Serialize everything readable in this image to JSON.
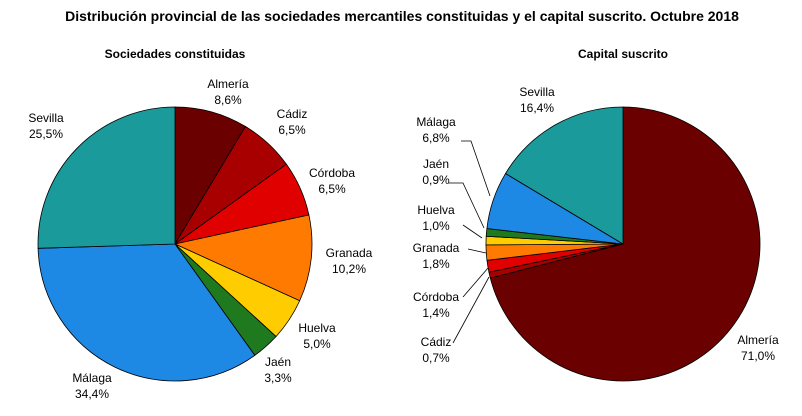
{
  "title": "Distribución provincial de las sociedades mercantiles constituidas y el capital suscrito. Octubre 2018",
  "chart_data": [
    {
      "type": "pie",
      "title": "Sociedades constituidas",
      "start_angle_deg": 0,
      "direction": "clockwise",
      "slices": [
        {
          "label": "Almería",
          "value": 8.6,
          "value_text": "8,6%",
          "color": "#6b0000"
        },
        {
          "label": "Cádiz",
          "value": 6.5,
          "value_text": "6,5%",
          "color": "#a80000"
        },
        {
          "label": "Córdoba",
          "value": 6.5,
          "value_text": "6,5%",
          "color": "#e00000"
        },
        {
          "label": "Granada",
          "value": 10.2,
          "value_text": "10,2%",
          "color": "#ff7a00"
        },
        {
          "label": "Huelva",
          "value": 5.0,
          "value_text": "5,0%",
          "color": "#ffcc00"
        },
        {
          "label": "Jaén",
          "value": 3.3,
          "value_text": "3,3%",
          "color": "#1f7a1f"
        },
        {
          "label": "Málaga",
          "value": 34.4,
          "value_text": "34,4%",
          "color": "#1e88e5"
        },
        {
          "label": "Sevilla",
          "value": 25.5,
          "value_text": "25,5%",
          "color": "#1a9a9a"
        }
      ]
    },
    {
      "type": "pie",
      "title": "Capital suscrito",
      "start_angle_deg": 0,
      "direction": "clockwise",
      "slices": [
        {
          "label": "Almería",
          "value": 71.0,
          "value_text": "71,0%",
          "color": "#6b0000"
        },
        {
          "label": "Cádiz",
          "value": 0.7,
          "value_text": "0,7%",
          "color": "#a80000"
        },
        {
          "label": "Córdoba",
          "value": 1.4,
          "value_text": "1,4%",
          "color": "#e00000"
        },
        {
          "label": "Granada",
          "value": 1.8,
          "value_text": "1,8%",
          "color": "#ff7a00"
        },
        {
          "label": "Huelva",
          "value": 1.0,
          "value_text": "1,0%",
          "color": "#ffcc00"
        },
        {
          "label": "Jaén",
          "value": 0.9,
          "value_text": "0,9%",
          "color": "#1f7a1f"
        },
        {
          "label": "Málaga",
          "value": 6.8,
          "value_text": "6,8%",
          "color": "#1e88e5"
        },
        {
          "label": "Sevilla",
          "value": 16.4,
          "value_text": "16,4%",
          "color": "#1a9a9a"
        }
      ]
    }
  ]
}
